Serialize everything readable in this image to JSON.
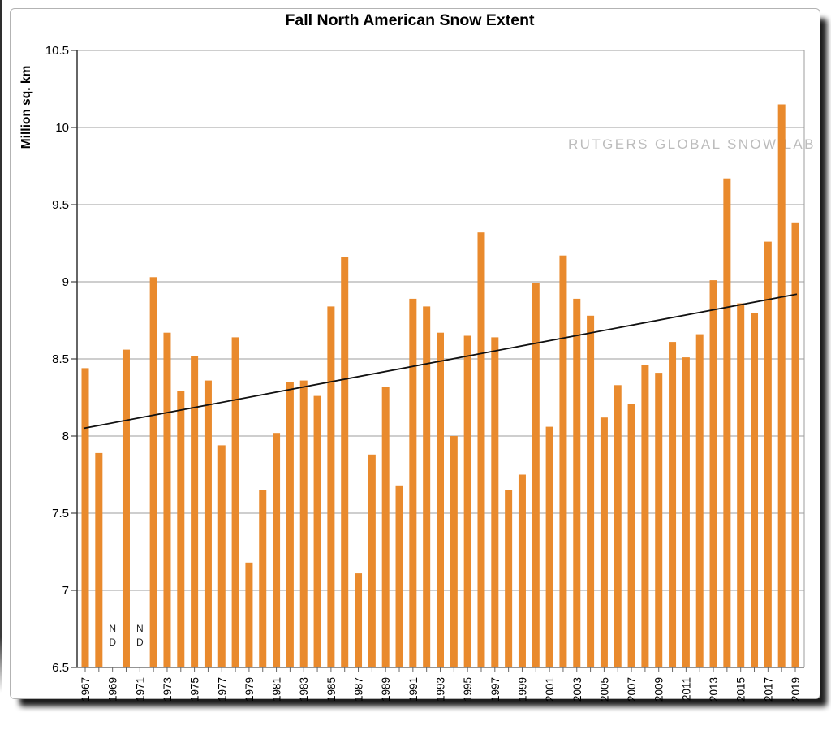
{
  "chart_data": {
    "type": "bar",
    "title": "Fall North American Snow Extent",
    "ylabel": "Million sq. km",
    "watermark": "RUTGERS GLOBAL SNOW LAB",
    "no_data_label": "ND",
    "ylim": [
      6.5,
      10.5
    ],
    "ytick_step": 0.5,
    "grid": true,
    "legend": "none",
    "bar_color": "#E98A2D",
    "grid_color": "#9c9c9c",
    "axis_color": "#333333",
    "trend_line": {
      "start_year": 1967,
      "start_value": 8.05,
      "end_year": 2019,
      "end_value": 8.92,
      "color": "#111111"
    },
    "no_data_years": [
      1969,
      1971
    ],
    "categories": [
      1967,
      1968,
      1969,
      1970,
      1971,
      1972,
      1973,
      1974,
      1975,
      1976,
      1977,
      1978,
      1979,
      1980,
      1981,
      1982,
      1983,
      1984,
      1985,
      1986,
      1987,
      1988,
      1989,
      1990,
      1991,
      1992,
      1993,
      1994,
      1995,
      1996,
      1997,
      1998,
      1999,
      2000,
      2001,
      2002,
      2003,
      2004,
      2005,
      2006,
      2007,
      2008,
      2009,
      2010,
      2011,
      2012,
      2013,
      2014,
      2015,
      2016,
      2017,
      2018,
      2019
    ],
    "values": [
      8.44,
      7.89,
      null,
      8.56,
      null,
      9.03,
      8.67,
      8.29,
      8.52,
      8.36,
      7.94,
      8.64,
      7.18,
      7.65,
      8.02,
      8.35,
      8.36,
      8.26,
      8.84,
      9.16,
      7.11,
      7.88,
      8.32,
      7.68,
      8.89,
      8.84,
      8.67,
      8.0,
      8.65,
      9.32,
      8.64,
      7.65,
      7.75,
      8.99,
      8.06,
      9.17,
      8.89,
      8.78,
      8.12,
      8.33,
      8.21,
      8.46,
      8.41,
      8.61,
      8.51,
      8.66,
      9.01,
      9.67,
      8.86,
      8.8,
      9.26,
      10.15,
      9.38
    ]
  }
}
